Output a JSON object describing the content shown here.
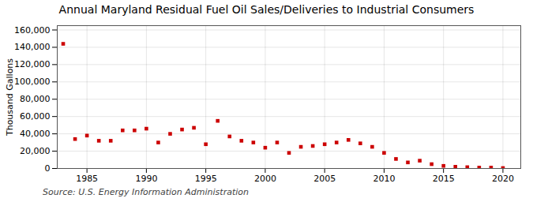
{
  "chart_data": {
    "type": "scatter",
    "title": "Annual Maryland Residual Fuel Oil Sales/Deliveries to Industrial Consumers",
    "ylabel": "Thousand Gallons",
    "source": "Source: U.S. Energy Information Administration",
    "x": [
      1983,
      1984,
      1985,
      1986,
      1987,
      1988,
      1989,
      1990,
      1991,
      1992,
      1993,
      1994,
      1995,
      1996,
      1997,
      1998,
      1999,
      2000,
      2001,
      2002,
      2003,
      2004,
      2005,
      2006,
      2007,
      2008,
      2009,
      2010,
      2011,
      2012,
      2013,
      2014,
      2015,
      2016,
      2017,
      2018,
      2019,
      2020
    ],
    "values": [
      144000,
      34000,
      38000,
      32000,
      32000,
      44000,
      44000,
      46000,
      30000,
      40000,
      45000,
      47000,
      28000,
      55000,
      37000,
      32000,
      30000,
      24000,
      30000,
      18000,
      25000,
      26000,
      28000,
      30000,
      33000,
      29000,
      25000,
      18000,
      11000,
      7000,
      9000,
      5000,
      3000,
      2000,
      1500,
      1000,
      1000,
      500
    ],
    "color": "#cc0000",
    "marker": "square",
    "xlim": [
      1982.5,
      2021.5
    ],
    "ylim": [
      0,
      165000
    ],
    "xticks": [
      1985,
      1990,
      1995,
      2000,
      2005,
      2010,
      2015,
      2020
    ],
    "yticks": [
      0,
      {
        "value": 20000,
        "label": "20,000"
      },
      {
        "value": 40000,
        "label": "40,000"
      },
      {
        "value": 60000,
        "label": "60,000"
      },
      {
        "value": 80000,
        "label": "80,000"
      },
      {
        "value": 100000,
        "label": "100,000"
      },
      {
        "value": 120000,
        "label": "120,000"
      },
      {
        "value": 140000,
        "label": "140,000"
      },
      {
        "value": 160000,
        "label": "160,000"
      }
    ],
    "grid": true
  }
}
